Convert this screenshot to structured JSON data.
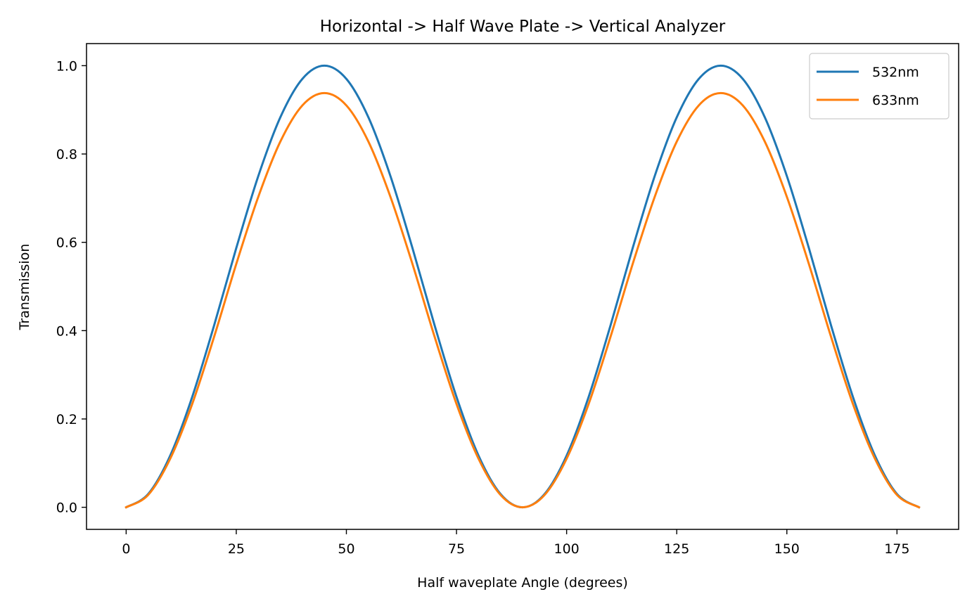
{
  "chart_data": {
    "type": "line",
    "title": "Horizontal -> Half Wave Plate -> Vertical Analyzer",
    "xlabel": "Half waveplate Angle (degrees)",
    "ylabel": "Transmission",
    "xlim": [
      -9,
      189
    ],
    "ylim": [
      -0.05,
      1.05
    ],
    "xticks": [
      0,
      25,
      50,
      75,
      100,
      125,
      150,
      175
    ],
    "xtick_labels": [
      "0",
      "25",
      "50",
      "75",
      "100",
      "125",
      "150",
      "175"
    ],
    "yticks": [
      0.0,
      0.2,
      0.4,
      0.6,
      0.8,
      1.0
    ],
    "ytick_labels": [
      "0.0",
      "0.2",
      "0.4",
      "0.6",
      "0.8",
      "1.0"
    ],
    "grid": false,
    "legend_position": "top-right",
    "x": [
      0,
      5,
      10,
      15,
      20,
      25,
      30,
      35,
      40,
      45,
      50,
      55,
      60,
      65,
      70,
      75,
      80,
      85,
      90,
      95,
      100,
      105,
      110,
      115,
      120,
      125,
      130,
      135,
      140,
      145,
      150,
      155,
      160,
      165,
      170,
      175,
      180
    ],
    "series": [
      {
        "name": "532nm",
        "color": "#1f77b4",
        "values": [
          0.0,
          0.03,
          0.117,
          0.25,
          0.413,
          0.587,
          0.75,
          0.883,
          0.97,
          1.0,
          0.97,
          0.883,
          0.75,
          0.587,
          0.413,
          0.25,
          0.117,
          0.03,
          0.0,
          0.03,
          0.117,
          0.25,
          0.413,
          0.587,
          0.75,
          0.883,
          0.97,
          1.0,
          0.97,
          0.883,
          0.75,
          0.587,
          0.413,
          0.25,
          0.117,
          0.03,
          0.0
        ]
      },
      {
        "name": "633nm",
        "color": "#ff7f0e",
        "values": [
          0.0,
          0.028,
          0.11,
          0.234,
          0.387,
          0.551,
          0.703,
          0.828,
          0.91,
          0.938,
          0.91,
          0.828,
          0.703,
          0.551,
          0.387,
          0.234,
          0.11,
          0.028,
          0.0,
          0.028,
          0.11,
          0.234,
          0.387,
          0.551,
          0.703,
          0.828,
          0.91,
          0.938,
          0.91,
          0.828,
          0.703,
          0.551,
          0.387,
          0.234,
          0.11,
          0.028,
          0.0
        ]
      }
    ]
  }
}
